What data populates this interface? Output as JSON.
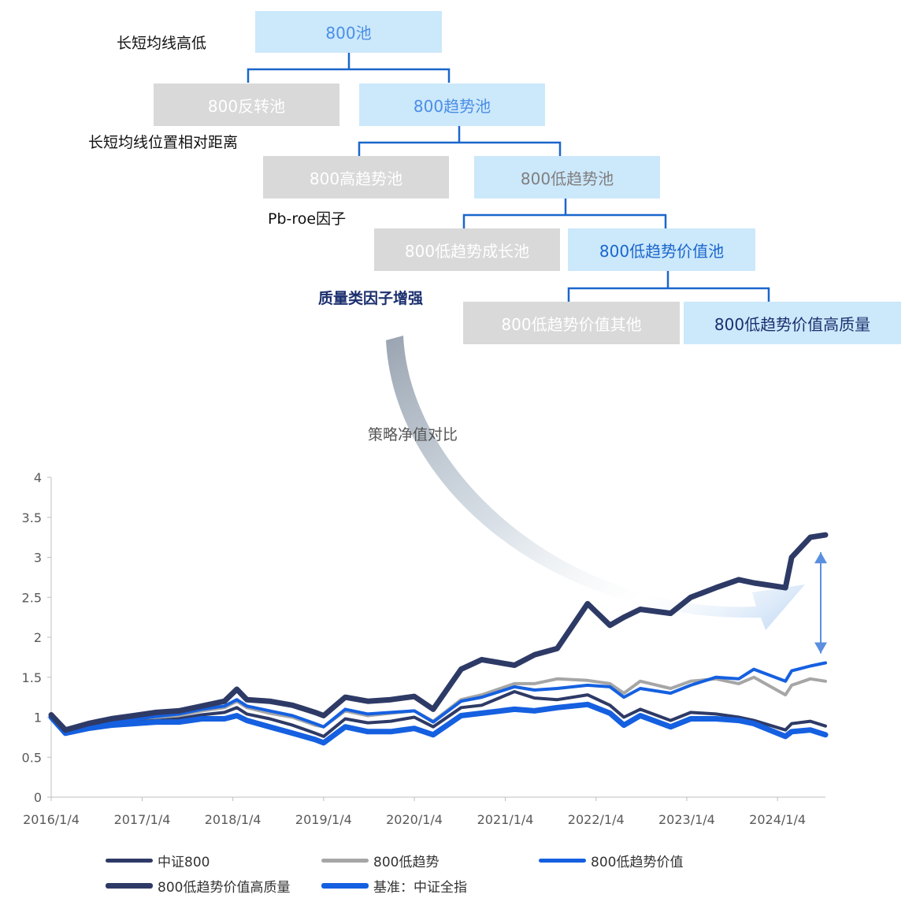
{
  "tree": {
    "nodes": [
      {
        "id": "pool800",
        "label": "800池",
        "style": "blue",
        "text_color": "#4a8ee6"
      },
      {
        "id": "reversal",
        "label": "800反转池",
        "style": "gray",
        "text_color": "#ffffff"
      },
      {
        "id": "trend",
        "label": "800趋势池",
        "style": "blue",
        "text_color": "#4a8ee6"
      },
      {
        "id": "high_trend",
        "label": "800高趋势池",
        "style": "gray",
        "text_color": "#ffffff"
      },
      {
        "id": "low_trend",
        "label": "800低趋势池",
        "style": "blue",
        "text_color": "#7f7f7f"
      },
      {
        "id": "low_growth",
        "label": "800低趋势成长池",
        "style": "gray",
        "text_color": "#ffffff"
      },
      {
        "id": "low_value",
        "label": "800低趋势价值池",
        "style": "blue",
        "text_color": "#1a66cc"
      },
      {
        "id": "low_value_other",
        "label": "800低趋势价值其他",
        "style": "gray",
        "text_color": "#ffffff"
      },
      {
        "id": "low_value_hq",
        "label": "800低趋势价值高质量",
        "style": "blue",
        "text_color": "#1b2f6e"
      }
    ],
    "labels": [
      {
        "id": "ma_highlow",
        "text": "长短均线高低"
      },
      {
        "id": "ma_position",
        "text": "长短均线位置相对距离"
      },
      {
        "id": "pb_roe",
        "text": "Pb-roe因子"
      },
      {
        "id": "quality",
        "text": "质量类因子增强"
      }
    ],
    "connector_color": "#1a66cc"
  },
  "arrow_label": "策略净值对比",
  "chart_data": {
    "type": "line",
    "x_ticks": [
      "2016/1/4",
      "2017/1/4",
      "2018/1/4",
      "2019/1/4",
      "2020/1/4",
      "2021/1/4",
      "2022/1/4",
      "2023/1/4",
      "2024/1/4"
    ],
    "y_ticks": [
      "0",
      "0.5",
      "1",
      "1.5",
      "2",
      "2.5",
      "3",
      "3.5",
      "4"
    ],
    "ylim": [
      0,
      4
    ],
    "xlim": [
      "2016-01-04",
      "2024-07-15"
    ],
    "grid": false,
    "legend_position": "bottom",
    "series": [
      {
        "name": "中证800",
        "color": "#2e3a66",
        "width": 4,
        "points": [
          [
            "2016-01-04",
            1.0
          ],
          [
            "2016-03-01",
            0.82
          ],
          [
            "2016-06-01",
            0.86
          ],
          [
            "2016-09-01",
            0.9
          ],
          [
            "2016-12-01",
            0.94
          ],
          [
            "2017-03-01",
            0.96
          ],
          [
            "2017-06-01",
            0.98
          ],
          [
            "2017-09-01",
            1.03
          ],
          [
            "2017-12-01",
            1.06
          ],
          [
            "2018-01-20",
            1.12
          ],
          [
            "2018-03-01",
            1.04
          ],
          [
            "2018-06-01",
            0.98
          ],
          [
            "2018-09-01",
            0.9
          ],
          [
            "2018-12-01",
            0.8
          ],
          [
            "2019-01-04",
            0.76
          ],
          [
            "2019-04-01",
            0.98
          ],
          [
            "2019-07-01",
            0.93
          ],
          [
            "2019-10-01",
            0.95
          ],
          [
            "2020-01-04",
            1.0
          ],
          [
            "2020-03-20",
            0.88
          ],
          [
            "2020-07-10",
            1.12
          ],
          [
            "2020-10-01",
            1.15
          ],
          [
            "2021-02-10",
            1.32
          ],
          [
            "2021-05-01",
            1.24
          ],
          [
            "2021-08-01",
            1.22
          ],
          [
            "2021-12-01",
            1.28
          ],
          [
            "2022-03-01",
            1.15
          ],
          [
            "2022-04-26",
            1.0
          ],
          [
            "2022-07-01",
            1.1
          ],
          [
            "2022-10-31",
            0.96
          ],
          [
            "2023-01-20",
            1.06
          ],
          [
            "2023-05-01",
            1.04
          ],
          [
            "2023-08-01",
            1.0
          ],
          [
            "2023-10-01",
            0.96
          ],
          [
            "2024-02-05",
            0.84
          ],
          [
            "2024-03-01",
            0.92
          ],
          [
            "2024-05-15",
            0.95
          ],
          [
            "2024-07-15",
            0.89
          ]
        ]
      },
      {
        "name": "800低趋势",
        "color": "#a6a6a6",
        "width": 4,
        "points": [
          [
            "2016-01-04",
            1.0
          ],
          [
            "2016-03-01",
            0.82
          ],
          [
            "2016-06-01",
            0.88
          ],
          [
            "2016-09-01",
            0.92
          ],
          [
            "2016-12-01",
            0.97
          ],
          [
            "2017-03-01",
            1.0
          ],
          [
            "2017-06-01",
            1.02
          ],
          [
            "2017-09-01",
            1.08
          ],
          [
            "2017-12-01",
            1.12
          ],
          [
            "2018-01-20",
            1.2
          ],
          [
            "2018-03-01",
            1.12
          ],
          [
            "2018-06-01",
            1.05
          ],
          [
            "2018-09-01",
            1.0
          ],
          [
            "2018-12-01",
            0.9
          ],
          [
            "2019-01-04",
            0.88
          ],
          [
            "2019-04-01",
            1.08
          ],
          [
            "2019-07-01",
            1.02
          ],
          [
            "2019-10-01",
            1.05
          ],
          [
            "2020-01-04",
            1.08
          ],
          [
            "2020-03-20",
            0.95
          ],
          [
            "2020-07-10",
            1.22
          ],
          [
            "2020-10-01",
            1.28
          ],
          [
            "2021-02-10",
            1.42
          ],
          [
            "2021-05-01",
            1.42
          ],
          [
            "2021-08-01",
            1.48
          ],
          [
            "2021-12-01",
            1.46
          ],
          [
            "2022-03-01",
            1.42
          ],
          [
            "2022-04-26",
            1.3
          ],
          [
            "2022-07-01",
            1.45
          ],
          [
            "2022-10-31",
            1.36
          ],
          [
            "2023-01-20",
            1.45
          ],
          [
            "2023-05-01",
            1.48
          ],
          [
            "2023-08-01",
            1.42
          ],
          [
            "2023-10-01",
            1.5
          ],
          [
            "2024-02-05",
            1.28
          ],
          [
            "2024-03-01",
            1.4
          ],
          [
            "2024-05-15",
            1.48
          ],
          [
            "2024-07-15",
            1.45
          ]
        ]
      },
      {
        "name": "800低趋势价值",
        "color": "#1560e0",
        "width": 4,
        "points": [
          [
            "2016-01-04",
            1.0
          ],
          [
            "2016-03-01",
            0.82
          ],
          [
            "2016-06-01",
            0.88
          ],
          [
            "2016-09-01",
            0.93
          ],
          [
            "2016-12-01",
            0.97
          ],
          [
            "2017-03-01",
            1.01
          ],
          [
            "2017-06-01",
            1.04
          ],
          [
            "2017-09-01",
            1.1
          ],
          [
            "2017-12-01",
            1.14
          ],
          [
            "2018-01-20",
            1.22
          ],
          [
            "2018-03-01",
            1.14
          ],
          [
            "2018-06-01",
            1.08
          ],
          [
            "2018-09-01",
            1.02
          ],
          [
            "2018-12-01",
            0.92
          ],
          [
            "2019-01-04",
            0.88
          ],
          [
            "2019-04-01",
            1.1
          ],
          [
            "2019-07-01",
            1.04
          ],
          [
            "2019-10-01",
            1.06
          ],
          [
            "2020-01-04",
            1.08
          ],
          [
            "2020-03-20",
            0.94
          ],
          [
            "2020-07-10",
            1.2
          ],
          [
            "2020-10-01",
            1.25
          ],
          [
            "2021-02-10",
            1.38
          ],
          [
            "2021-05-01",
            1.34
          ],
          [
            "2021-08-01",
            1.36
          ],
          [
            "2021-12-01",
            1.4
          ],
          [
            "2022-03-01",
            1.38
          ],
          [
            "2022-04-26",
            1.25
          ],
          [
            "2022-07-01",
            1.36
          ],
          [
            "2022-10-31",
            1.3
          ],
          [
            "2023-01-20",
            1.4
          ],
          [
            "2023-05-01",
            1.5
          ],
          [
            "2023-08-01",
            1.48
          ],
          [
            "2023-10-01",
            1.6
          ],
          [
            "2024-02-05",
            1.45
          ],
          [
            "2024-03-01",
            1.58
          ],
          [
            "2024-05-15",
            1.64
          ],
          [
            "2024-07-15",
            1.68
          ]
        ]
      },
      {
        "name": "800低趋势价值高质量",
        "color": "#2e3a66",
        "width": 7,
        "points": [
          [
            "2016-01-04",
            1.03
          ],
          [
            "2016-03-01",
            0.84
          ],
          [
            "2016-06-01",
            0.92
          ],
          [
            "2016-09-01",
            0.98
          ],
          [
            "2016-12-01",
            1.02
          ],
          [
            "2017-03-01",
            1.06
          ],
          [
            "2017-06-01",
            1.08
          ],
          [
            "2017-09-01",
            1.14
          ],
          [
            "2017-12-01",
            1.2
          ],
          [
            "2018-01-20",
            1.35
          ],
          [
            "2018-03-01",
            1.22
          ],
          [
            "2018-06-01",
            1.2
          ],
          [
            "2018-09-01",
            1.15
          ],
          [
            "2018-12-01",
            1.06
          ],
          [
            "2019-01-04",
            1.02
          ],
          [
            "2019-04-01",
            1.25
          ],
          [
            "2019-07-01",
            1.2
          ],
          [
            "2019-10-01",
            1.22
          ],
          [
            "2020-01-04",
            1.26
          ],
          [
            "2020-03-20",
            1.1
          ],
          [
            "2020-07-10",
            1.6
          ],
          [
            "2020-10-01",
            1.72
          ],
          [
            "2021-02-10",
            1.65
          ],
          [
            "2021-05-01",
            1.78
          ],
          [
            "2021-08-01",
            1.86
          ],
          [
            "2021-12-01",
            2.42
          ],
          [
            "2022-03-01",
            2.15
          ],
          [
            "2022-04-26",
            2.25
          ],
          [
            "2022-07-01",
            2.35
          ],
          [
            "2022-10-31",
            2.3
          ],
          [
            "2023-01-20",
            2.5
          ],
          [
            "2023-05-01",
            2.62
          ],
          [
            "2023-08-01",
            2.72
          ],
          [
            "2023-10-01",
            2.68
          ],
          [
            "2024-02-05",
            2.62
          ],
          [
            "2024-03-01",
            3.0
          ],
          [
            "2024-05-15",
            3.25
          ],
          [
            "2024-07-15",
            3.28
          ]
        ]
      },
      {
        "name": "基准：中证全指",
        "color": "#1560e0",
        "width": 7,
        "points": [
          [
            "2016-01-04",
            1.0
          ],
          [
            "2016-03-01",
            0.8
          ],
          [
            "2016-06-01",
            0.86
          ],
          [
            "2016-09-01",
            0.9
          ],
          [
            "2016-12-01",
            0.92
          ],
          [
            "2017-03-01",
            0.94
          ],
          [
            "2017-06-01",
            0.94
          ],
          [
            "2017-09-01",
            0.98
          ],
          [
            "2017-12-01",
            0.98
          ],
          [
            "2018-01-20",
            1.02
          ],
          [
            "2018-03-01",
            0.96
          ],
          [
            "2018-06-01",
            0.88
          ],
          [
            "2018-09-01",
            0.8
          ],
          [
            "2018-12-01",
            0.72
          ],
          [
            "2019-01-04",
            0.68
          ],
          [
            "2019-04-01",
            0.88
          ],
          [
            "2019-07-01",
            0.82
          ],
          [
            "2019-10-01",
            0.82
          ],
          [
            "2020-01-04",
            0.86
          ],
          [
            "2020-03-20",
            0.78
          ],
          [
            "2020-07-10",
            1.02
          ],
          [
            "2020-10-01",
            1.05
          ],
          [
            "2021-02-10",
            1.1
          ],
          [
            "2021-05-01",
            1.08
          ],
          [
            "2021-08-01",
            1.12
          ],
          [
            "2021-12-01",
            1.16
          ],
          [
            "2022-03-01",
            1.05
          ],
          [
            "2022-04-26",
            0.9
          ],
          [
            "2022-07-01",
            1.02
          ],
          [
            "2022-10-31",
            0.88
          ],
          [
            "2023-01-20",
            0.98
          ],
          [
            "2023-05-01",
            0.98
          ],
          [
            "2023-08-01",
            0.96
          ],
          [
            "2023-10-01",
            0.92
          ],
          [
            "2024-02-05",
            0.76
          ],
          [
            "2024-03-01",
            0.82
          ],
          [
            "2024-05-15",
            0.84
          ],
          [
            "2024-07-15",
            0.78
          ]
        ]
      }
    ]
  }
}
